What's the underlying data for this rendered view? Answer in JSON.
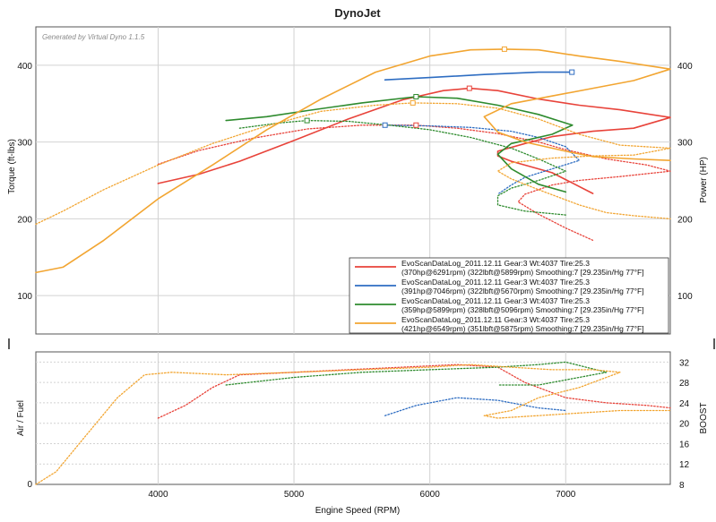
{
  "title": "DynoJet",
  "generated_by": "Generated by Virtual Dyno 1.1.5",
  "chart_data": [
    {
      "type": "line",
      "panel": "power_torque",
      "xlabel": "Engine Speed (RPM)",
      "ylabel_left": "Torque (ft-lbs)",
      "ylabel_right": "Power (HP)",
      "xlim": [
        3100,
        7770
      ],
      "ylim": [
        50,
        450
      ],
      "x_ticks": [
        4000,
        5000,
        6000,
        7000
      ],
      "y_ticks_left": [
        100,
        200,
        300,
        400
      ],
      "y_ticks_right": [
        100,
        200,
        300,
        400
      ],
      "grid": true,
      "legend_position": "bottom-right",
      "legend": [
        {
          "line1": "EvoScanDataLog_2011.12.11 Gear:3 Wt:4037 Tire:25.3",
          "line2": "(370hp@6291rpm) (322lbft@5899rpm) Smoothing:7 [29.235in/Hg 77°F]",
          "color": "#e8433a"
        },
        {
          "line1": "EvoScanDataLog_2011.12.11 Gear:3 Wt:4037 Tire:25.3",
          "line2": "(391hp@7046rpm) (322lbft@5670rpm) Smoothing:7 [29.235in/Hg 77°F]",
          "color": "#2e6dc2"
        },
        {
          "line1": "EvoScanDataLog_2011.12.11 Gear:3 Wt:4037 Tire:25.3",
          "line2": "(359hp@5899rpm) (328lbft@5096rpm) Smoothing:7 [29.235in/Hg 77°F]",
          "color": "#2e8b2e"
        },
        {
          "line1": "EvoScanDataLog_2011.12.11 Gear:3 Wt:4037 Tire:25.3",
          "line2": "(421hp@6549rpm) (351lbft@5875rpm) Smoothing:7 [29.235in/Hg 77°F]",
          "color": "#f2a531"
        }
      ],
      "series": [
        {
          "name": "Power",
          "run": 1,
          "color": "#e8433a",
          "style": "solid",
          "x": [
            4000,
            4300,
            4600,
            5000,
            5400,
            5800,
            6100,
            6291,
            6500,
            6800,
            7100,
            7400,
            7770,
            7500,
            7200,
            6900,
            6700,
            6500,
            6500,
            6600,
            6900,
            7200
          ],
          "y": [
            246,
            258,
            275,
            302,
            330,
            355,
            367,
            370,
            367,
            356,
            348,
            342,
            332,
            318,
            314,
            307,
            298,
            288,
            282,
            275,
            260,
            233
          ]
        },
        {
          "name": "Torque",
          "run": 1,
          "color": "#e8433a",
          "style": "dotted",
          "x": [
            4000,
            4300,
            4700,
            5100,
            5500,
            5899,
            6200,
            6500,
            6800,
            7000,
            7300,
            7600,
            7770,
            7400,
            7100,
            6900,
            6700,
            6650,
            6800,
            7000,
            7200
          ],
          "y": [
            271,
            289,
            305,
            317,
            322,
            322,
            318,
            311,
            300,
            290,
            278,
            270,
            262,
            255,
            250,
            244,
            232,
            222,
            206,
            188,
            172
          ]
        },
        {
          "name": "Power",
          "run": 2,
          "color": "#2e6dc2",
          "style": "solid",
          "x": [
            5670,
            6000,
            6400,
            6800,
            7046
          ],
          "y": [
            381,
            384,
            388,
            391,
            391
          ]
        },
        {
          "name": "Torque",
          "run": 2,
          "color": "#2e6dc2",
          "style": "dotted",
          "x": [
            5670,
            6000,
            6300,
            6600,
            6800,
            7000,
            7100,
            6900,
            6700,
            6600,
            6500
          ],
          "y": [
            322,
            321,
            319,
            314,
            306,
            294,
            276,
            265,
            254,
            244,
            232
          ]
        },
        {
          "name": "Power",
          "run": 3,
          "color": "#2e8b2e",
          "style": "solid",
          "x": [
            4500,
            4800,
            5100,
            5500,
            5899,
            6200,
            6500,
            6800,
            7050,
            6900,
            6600,
            6500,
            6600,
            6800,
            7000
          ],
          "y": [
            328,
            333,
            341,
            351,
            359,
            357,
            348,
            336,
            322,
            310,
            298,
            284,
            265,
            245,
            235
          ]
        },
        {
          "name": "Torque",
          "run": 3,
          "color": "#2e8b2e",
          "style": "dotted",
          "x": [
            4600,
            4900,
            5096,
            5400,
            5700,
            6000,
            6300,
            6600,
            6800,
            7000,
            6800,
            6600,
            6500,
            6500,
            6700,
            7000
          ],
          "y": [
            318,
            325,
            328,
            327,
            322,
            316,
            306,
            292,
            278,
            262,
            250,
            240,
            230,
            218,
            210,
            205
          ]
        },
        {
          "name": "Power",
          "run": 4,
          "color": "#f2a531",
          "style": "solid",
          "x": [
            3100,
            3300,
            3600,
            4000,
            4400,
            4800,
            5200,
            5600,
            6000,
            6300,
            6549,
            6800,
            7100,
            7400,
            7770,
            7500,
            7200,
            6900,
            6600,
            6400,
            6500,
            6700,
            7000,
            7200,
            7500,
            7770
          ],
          "y": [
            130,
            137,
            172,
            226,
            270,
            316,
            356,
            391,
            412,
            420,
            421,
            420,
            412,
            405,
            395,
            380,
            370,
            360,
            350,
            333,
            313,
            300,
            288,
            281,
            278,
            276
          ]
        },
        {
          "name": "Torque",
          "run": 4,
          "color": "#f2a531",
          "style": "dotted",
          "x": [
            3100,
            3300,
            3600,
            4000,
            4400,
            4800,
            5200,
            5600,
            5875,
            6200,
            6500,
            6800,
            7100,
            7400,
            7770,
            7500,
            7200,
            6900,
            6600,
            6500,
            6600,
            6800,
            7100,
            7300,
            7500,
            7770
          ],
          "y": [
            193,
            210,
            238,
            270,
            298,
            321,
            340,
            348,
            351,
            350,
            344,
            330,
            310,
            296,
            292,
            283,
            282,
            279,
            273,
            262,
            252,
            238,
            218,
            208,
            204,
            200
          ]
        }
      ],
      "markers": [
        {
          "x": 6291,
          "y": 370,
          "color": "#e8433a"
        },
        {
          "x": 5899,
          "y": 322,
          "color": "#e8433a"
        },
        {
          "x": 7046,
          "y": 391,
          "color": "#2e6dc2"
        },
        {
          "x": 5670,
          "y": 322,
          "color": "#2e6dc2"
        },
        {
          "x": 5899,
          "y": 359,
          "color": "#2e8b2e"
        },
        {
          "x": 5096,
          "y": 328,
          "color": "#2e8b2e"
        },
        {
          "x": 6549,
          "y": 421,
          "color": "#f2a531"
        },
        {
          "x": 5875,
          "y": 351,
          "color": "#f2a531"
        }
      ]
    },
    {
      "type": "line",
      "panel": "air_fuel_boost",
      "xlabel": "Engine Speed (RPM)",
      "ylabel_left": "Air / Fuel",
      "ylabel_right": "BOOST",
      "xlim": [
        3100,
        7770
      ],
      "ylim": [
        8,
        34
      ],
      "left_tick_labels": [
        "0"
      ],
      "y_ticks_right": [
        8,
        12,
        16,
        20,
        24,
        28,
        32
      ],
      "grid": true,
      "series": [
        {
          "name": "Boost",
          "run": 1,
          "color": "#e8433a",
          "style": "dotted",
          "x": [
            4000,
            4200,
            4400,
            4600,
            5000,
            5400,
            5800,
            6200,
            6500,
            6700,
            7000,
            7300,
            7600,
            7770
          ],
          "y": [
            21,
            23.5,
            27,
            29.5,
            30,
            30.5,
            31,
            31.5,
            31,
            28,
            25,
            24,
            23.5,
            23
          ]
        },
        {
          "name": "Boost",
          "run": 2,
          "color": "#2e6dc2",
          "style": "dotted",
          "x": [
            5670,
            5900,
            6200,
            6500,
            6800,
            7000
          ],
          "y": [
            21.5,
            23.5,
            25,
            24.5,
            23,
            22.5
          ]
        },
        {
          "name": "Boost",
          "run": 3,
          "color": "#2e8b2e",
          "style": "dotted",
          "x": [
            4500,
            5000,
            5500,
            6000,
            6500,
            6800,
            7000,
            7300,
            6800,
            6500
          ],
          "y": [
            27.5,
            29,
            30,
            30.5,
            31,
            31.5,
            32,
            30,
            27.5,
            27.5
          ]
        },
        {
          "name": "Boost",
          "run": 4,
          "color": "#f2a531",
          "style": "dotted",
          "x": [
            3100,
            3250,
            3450,
            3700,
            3900,
            4100,
            4500,
            5000,
            5500,
            6000,
            6300,
            6600,
            6900,
            7200,
            7400,
            7100,
            6800,
            6600,
            6400,
            6500,
            6800,
            7100,
            7400,
            7770
          ],
          "y": [
            8,
            10.5,
            17,
            25,
            29.5,
            30,
            29.5,
            30,
            30.5,
            31,
            31.5,
            31,
            30.5,
            30.5,
            30,
            27,
            25,
            22.5,
            21.5,
            21,
            21.5,
            22,
            22.5,
            22.5
          ]
        }
      ]
    }
  ],
  "colors": {
    "run1": "#e8433a",
    "run2": "#2e6dc2",
    "run3": "#2e8b2e",
    "run4": "#f2a531",
    "grid": "#d2d2d2"
  }
}
